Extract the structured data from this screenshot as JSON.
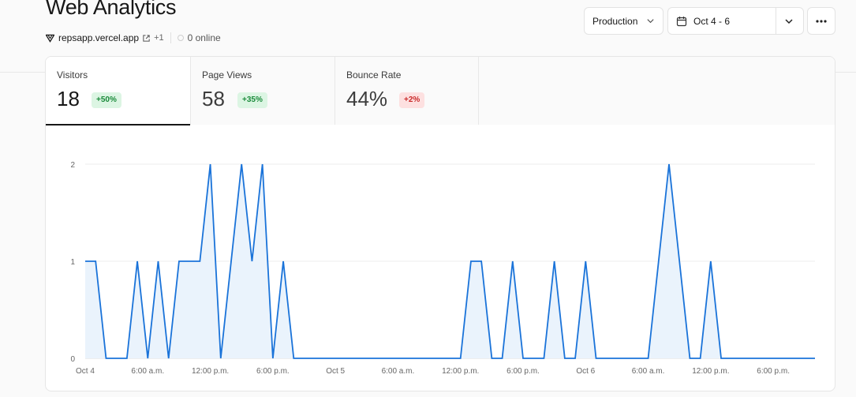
{
  "header": {
    "title": "Web Analytics",
    "site": "repsapp.vercel.app",
    "extra_count": "+1",
    "online": "0 online"
  },
  "controls": {
    "environment": "Production",
    "date_range": "Oct 4 - 6"
  },
  "tabs": [
    {
      "label": "Visitors",
      "value": "18",
      "change": "+50%",
      "trend": "up"
    },
    {
      "label": "Page Views",
      "value": "58",
      "change": "+35%",
      "trend": "up"
    },
    {
      "label": "Bounce Rate",
      "value": "44%",
      "change": "+2%",
      "trend": "down"
    }
  ],
  "colors": {
    "line": "#1a73d9",
    "fill": "#eaf3fc",
    "up": "#1a8a3a",
    "down": "#c92a2a"
  },
  "chart_data": {
    "type": "area",
    "ylim": [
      0,
      2
    ],
    "y_ticks": [
      "0",
      "1",
      "2"
    ],
    "x_ticks": [
      "Oct 4",
      "6:00 a.m.",
      "12:00 p.m.",
      "6:00 p.m.",
      "Oct 5",
      "6:00 a.m.",
      "12:00 p.m.",
      "6:00 p.m.",
      "Oct 6",
      "6:00 a.m.",
      "12:00 p.m.",
      "6:00 p.m."
    ],
    "x_unit": "hour",
    "x_start": "Oct 4 00:00",
    "values": [
      1,
      1,
      0,
      0,
      0,
      1,
      0,
      1,
      0,
      1,
      1,
      1,
      2,
      0,
      1,
      2,
      1,
      2,
      0,
      1,
      0,
      0,
      0,
      0,
      0,
      0,
      0,
      0,
      0,
      0,
      0,
      0,
      0,
      0,
      0,
      0,
      0,
      1,
      1,
      0,
      0,
      1,
      0,
      0,
      0,
      1,
      0,
      0,
      1,
      0,
      0,
      0,
      0,
      0,
      0,
      1,
      2,
      1,
      0,
      0,
      1,
      0,
      0,
      0,
      0,
      0,
      0,
      0,
      0,
      0,
      0
    ]
  }
}
